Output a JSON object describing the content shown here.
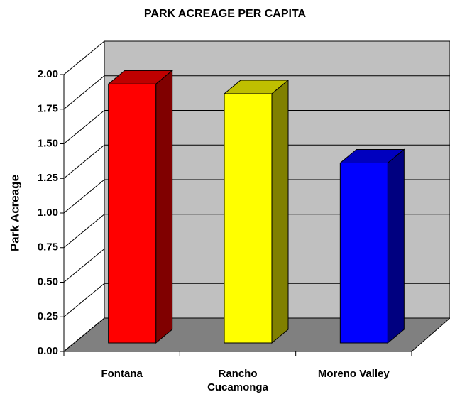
{
  "chart_data": {
    "type": "bar3d",
    "title": "PARK ACREAGE PER CAPITA",
    "ylabel": "Park Acreage",
    "categories": [
      "Fontana",
      "Rancho Cucamonga",
      "Moreno Valley"
    ],
    "values": [
      1.87,
      1.8,
      1.3
    ],
    "colors": [
      "#ff0000",
      "#ffff00",
      "#0000ff"
    ],
    "ylim": [
      0,
      2
    ],
    "yticks": [
      {
        "value": 0,
        "label": "0.00"
      },
      {
        "value": 0.25,
        "label": "0.25"
      },
      {
        "value": 0.5,
        "label": "0.50"
      },
      {
        "value": 0.75,
        "label": "0.75"
      },
      {
        "value": 1,
        "label": "1.00"
      },
      {
        "value": 1.25,
        "label": "1.25"
      },
      {
        "value": 1.5,
        "label": "1.50"
      },
      {
        "value": 1.75,
        "label": "1.75"
      },
      {
        "value": 2,
        "label": "2.00"
      }
    ],
    "grid": true
  }
}
